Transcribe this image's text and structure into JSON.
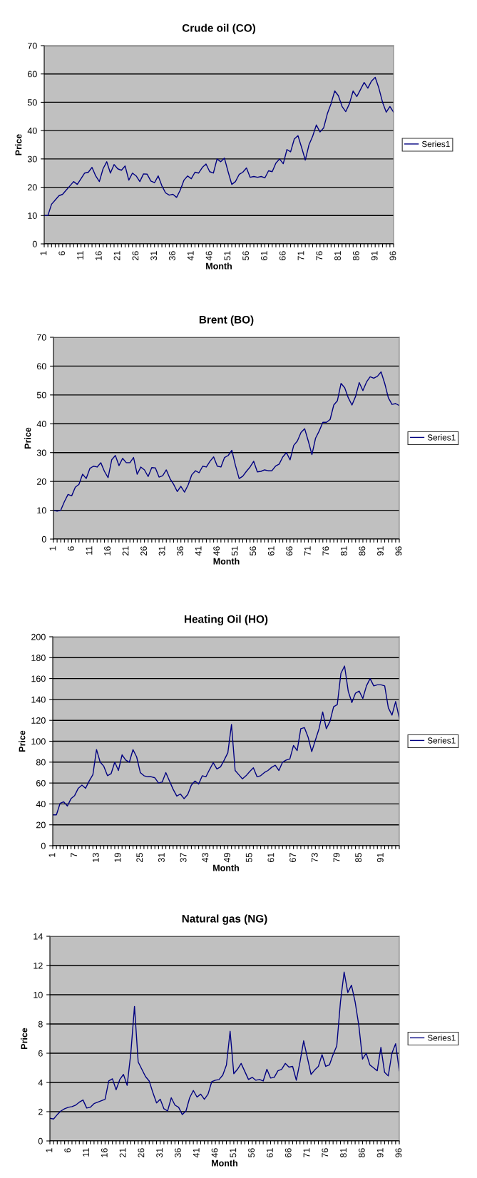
{
  "chart_data": [
    {
      "type": "line",
      "title": "Crude oil (CO)",
      "xlabel": "Month",
      "ylabel": "Price",
      "grid": "y",
      "legend": "right",
      "ylim": [
        0,
        70
      ],
      "yticks": [
        0,
        10,
        20,
        30,
        40,
        50,
        60,
        70
      ],
      "categories": [
        "1",
        null,
        null,
        null,
        null,
        "6",
        null,
        null,
        null,
        null,
        "11",
        null,
        null,
        null,
        null,
        "16",
        null,
        null,
        null,
        null,
        "21",
        null,
        null,
        null,
        null,
        "26",
        null,
        null,
        null,
        null,
        "31",
        null,
        null,
        null,
        null,
        "36",
        null,
        null,
        null,
        null,
        "41",
        null,
        null,
        null,
        null,
        "46",
        null,
        null,
        null,
        null,
        "51",
        null,
        null,
        null,
        null,
        "56",
        null,
        null,
        null,
        null,
        "61",
        null,
        null,
        null,
        null,
        "66",
        null,
        null,
        null,
        null,
        "71",
        null,
        null,
        null,
        null,
        "76",
        null,
        null,
        null,
        null,
        "81",
        null,
        null,
        null,
        null,
        "86",
        null,
        null,
        null,
        null,
        "91",
        null,
        null,
        null,
        null,
        "96"
      ],
      "series": [
        {
          "name": "Series1",
          "color": "#000080",
          "values": [
            10,
            10,
            14,
            15.5,
            17,
            17.5,
            19,
            20.5,
            22,
            21,
            23,
            25,
            25.3,
            27,
            24,
            22,
            26.5,
            29,
            25,
            28,
            26.5,
            26,
            27.5,
            22.5,
            25,
            24,
            22,
            24.7,
            24.6,
            22.2,
            21.6,
            24,
            20.5,
            18,
            17.2,
            17.5,
            16.4,
            19,
            22.5,
            24,
            23,
            25.3,
            25,
            27,
            28.2,
            25.5,
            25,
            30,
            29,
            30.3,
            25.5,
            21,
            22,
            24.5,
            25.3,
            26.8,
            23.5,
            23.8,
            23.5,
            23.8,
            23.3,
            25.8,
            25.5,
            28.5,
            30,
            28.3,
            33.3,
            32.5,
            37,
            38.2,
            34,
            29.6,
            35,
            38,
            42,
            39.5,
            41,
            46,
            49.5,
            54,
            52.3,
            48.5,
            46.7,
            49.5,
            54,
            52,
            54.5,
            57,
            55,
            57.5,
            58.8,
            55,
            50,
            46.5,
            48.5,
            46.5
          ]
        }
      ]
    },
    {
      "type": "line",
      "title": "Brent (BO)",
      "xlabel": "Month",
      "ylabel": "Price",
      "grid": "y",
      "legend": "right",
      "ylim": [
        0,
        70
      ],
      "yticks": [
        0,
        10,
        20,
        30,
        40,
        50,
        60,
        70
      ],
      "categories": [
        "1",
        null,
        null,
        null,
        null,
        "6",
        null,
        null,
        null,
        null,
        "11",
        null,
        null,
        null,
        null,
        "16",
        null,
        null,
        null,
        null,
        "21",
        null,
        null,
        null,
        null,
        "26",
        null,
        null,
        null,
        null,
        "31",
        null,
        null,
        null,
        null,
        "36",
        null,
        null,
        null,
        null,
        "41",
        null,
        null,
        null,
        null,
        "46",
        null,
        null,
        null,
        null,
        "51",
        null,
        null,
        null,
        null,
        "56",
        null,
        null,
        null,
        null,
        "61",
        null,
        null,
        null,
        null,
        "66",
        null,
        null,
        null,
        null,
        "71",
        null,
        null,
        null,
        null,
        "76",
        null,
        null,
        null,
        null,
        "81",
        null,
        null,
        null,
        null,
        "86",
        null,
        null,
        null,
        null,
        "91",
        null,
        null,
        null,
        null,
        "96"
      ],
      "series": [
        {
          "name": "Series1",
          "color": "#000080",
          "values": [
            10,
            9.7,
            10,
            13,
            15.5,
            15,
            18,
            19,
            22.5,
            21,
            24.5,
            25.3,
            25,
            26.5,
            23.5,
            21.3,
            27.5,
            29,
            25.5,
            28,
            26.5,
            26.5,
            28.3,
            22.5,
            25,
            24,
            21.7,
            24.8,
            24.7,
            21.5,
            22,
            24,
            21,
            19,
            16.5,
            18.3,
            16.3,
            18.8,
            22.3,
            23.7,
            23,
            25.3,
            25,
            27,
            28.5,
            25.3,
            25,
            28.3,
            29,
            30.8,
            25.5,
            21,
            21.8,
            23.5,
            25,
            27,
            23.3,
            23.5,
            24,
            23.7,
            23.7,
            25.3,
            26,
            28.5,
            30,
            27.5,
            32.5,
            34,
            37,
            38.3,
            34,
            29.3,
            35,
            37.5,
            40.5,
            40.5,
            41.5,
            46.5,
            48,
            54,
            52.5,
            49,
            46.5,
            49.5,
            54.3,
            51.5,
            54.5,
            56.3,
            55.8,
            56.5,
            58,
            54,
            49,
            46.7,
            47,
            46.3
          ]
        }
      ]
    },
    {
      "type": "line",
      "title": "Heating Oil (HO)",
      "xlabel": "Month",
      "ylabel": "Price",
      "grid": "y",
      "legend": "right",
      "ylim": [
        0,
        200
      ],
      "yticks": [
        0,
        20,
        40,
        60,
        80,
        100,
        120,
        140,
        160,
        180,
        200
      ],
      "categories": [
        "1",
        null,
        null,
        null,
        null,
        null,
        "7",
        null,
        null,
        null,
        null,
        null,
        "13",
        null,
        null,
        null,
        null,
        null,
        "19",
        null,
        null,
        null,
        null,
        null,
        "25",
        null,
        null,
        null,
        null,
        null,
        "31",
        null,
        null,
        null,
        null,
        null,
        "37",
        null,
        null,
        null,
        null,
        null,
        "43",
        null,
        null,
        null,
        null,
        null,
        "49",
        null,
        null,
        null,
        null,
        null,
        "55",
        null,
        null,
        null,
        null,
        null,
        "61",
        null,
        null,
        null,
        null,
        null,
        "67",
        null,
        null,
        null,
        null,
        null,
        "73",
        null,
        null,
        null,
        null,
        null,
        "79",
        null,
        null,
        null,
        null,
        null,
        "85",
        null,
        null,
        null,
        null,
        null,
        "91",
        null,
        null,
        null,
        null,
        null
      ],
      "series": [
        {
          "name": "Series1",
          "color": "#000080",
          "values": [
            29.5,
            29.5,
            40.5,
            42,
            38,
            45,
            48,
            55,
            58,
            55,
            62,
            68,
            92,
            80,
            76,
            67,
            69,
            80,
            72,
            87,
            82,
            80,
            92,
            85,
            70,
            67,
            66,
            66,
            65,
            60,
            61,
            70,
            62,
            54,
            47.5,
            49.5,
            45,
            49,
            58,
            62,
            59,
            67,
            66,
            73,
            79.5,
            73.5,
            75.5,
            82,
            89,
            116,
            72,
            68,
            64,
            67,
            71,
            74.5,
            66,
            67,
            70,
            72,
            75,
            77,
            72,
            80,
            82,
            83,
            96,
            91,
            112,
            113,
            104,
            90,
            101,
            112,
            128,
            112,
            119,
            133,
            135,
            165,
            172,
            148,
            137,
            146,
            148,
            141,
            153,
            160,
            153,
            154,
            154,
            153,
            132,
            125,
            138,
            122
          ]
        }
      ]
    },
    {
      "type": "line",
      "title": "Natural gas (NG)",
      "xlabel": "Month",
      "ylabel": "Price",
      "grid": "y",
      "legend": "right",
      "ylim": [
        0,
        14
      ],
      "yticks": [
        0,
        2,
        4,
        6,
        8,
        10,
        12,
        14
      ],
      "categories": [
        "1",
        null,
        null,
        null,
        null,
        "6",
        null,
        null,
        null,
        null,
        "11",
        null,
        null,
        null,
        null,
        "16",
        null,
        null,
        null,
        null,
        "21",
        null,
        null,
        null,
        null,
        "26",
        null,
        null,
        null,
        null,
        "31",
        null,
        null,
        null,
        null,
        "36",
        null,
        null,
        null,
        null,
        "41",
        null,
        null,
        null,
        null,
        "46",
        null,
        null,
        null,
        null,
        "51",
        null,
        null,
        null,
        null,
        "56",
        null,
        null,
        null,
        null,
        "61",
        null,
        null,
        null,
        null,
        "66",
        null,
        null,
        null,
        null,
        "71",
        null,
        null,
        null,
        null,
        "76",
        null,
        null,
        null,
        null,
        "81",
        null,
        null,
        null,
        null,
        "86",
        null,
        null,
        null,
        null,
        "91",
        null,
        null,
        null,
        null,
        "96"
      ],
      "series": [
        {
          "name": "Series1",
          "color": "#000080",
          "values": [
            1.55,
            1.5,
            1.8,
            2.05,
            2.2,
            2.3,
            2.35,
            2.45,
            2.65,
            2.8,
            2.25,
            2.3,
            2.55,
            2.65,
            2.75,
            2.85,
            4.1,
            4.25,
            3.5,
            4.2,
            4.55,
            3.8,
            6,
            9.2,
            5.4,
            4.9,
            4.4,
            4.1,
            3.3,
            2.6,
            2.85,
            2.2,
            2.05,
            2.95,
            2.45,
            2.3,
            1.8,
            2.05,
            2.95,
            3.45,
            3,
            3.2,
            2.85,
            3.2,
            4.05,
            4.15,
            4.2,
            4.5,
            5.2,
            7.5,
            4.6,
            4.9,
            5.3,
            4.75,
            4.2,
            4.35,
            4.15,
            4.2,
            4.1,
            4.9,
            4.3,
            4.35,
            4.8,
            4.9,
            5.3,
            5.05,
            5.1,
            4.15,
            5.4,
            6.85,
            5.7,
            4.55,
            4.85,
            5.1,
            5.9,
            5.1,
            5.2,
            5.9,
            6.5,
            9.5,
            11.55,
            10.15,
            10.65,
            9.5,
            7.9,
            5.6,
            6,
            5.2,
            5,
            4.8,
            6.4,
            4.7,
            4.45,
            6,
            6.65,
            4.8
          ]
        }
      ]
    }
  ]
}
